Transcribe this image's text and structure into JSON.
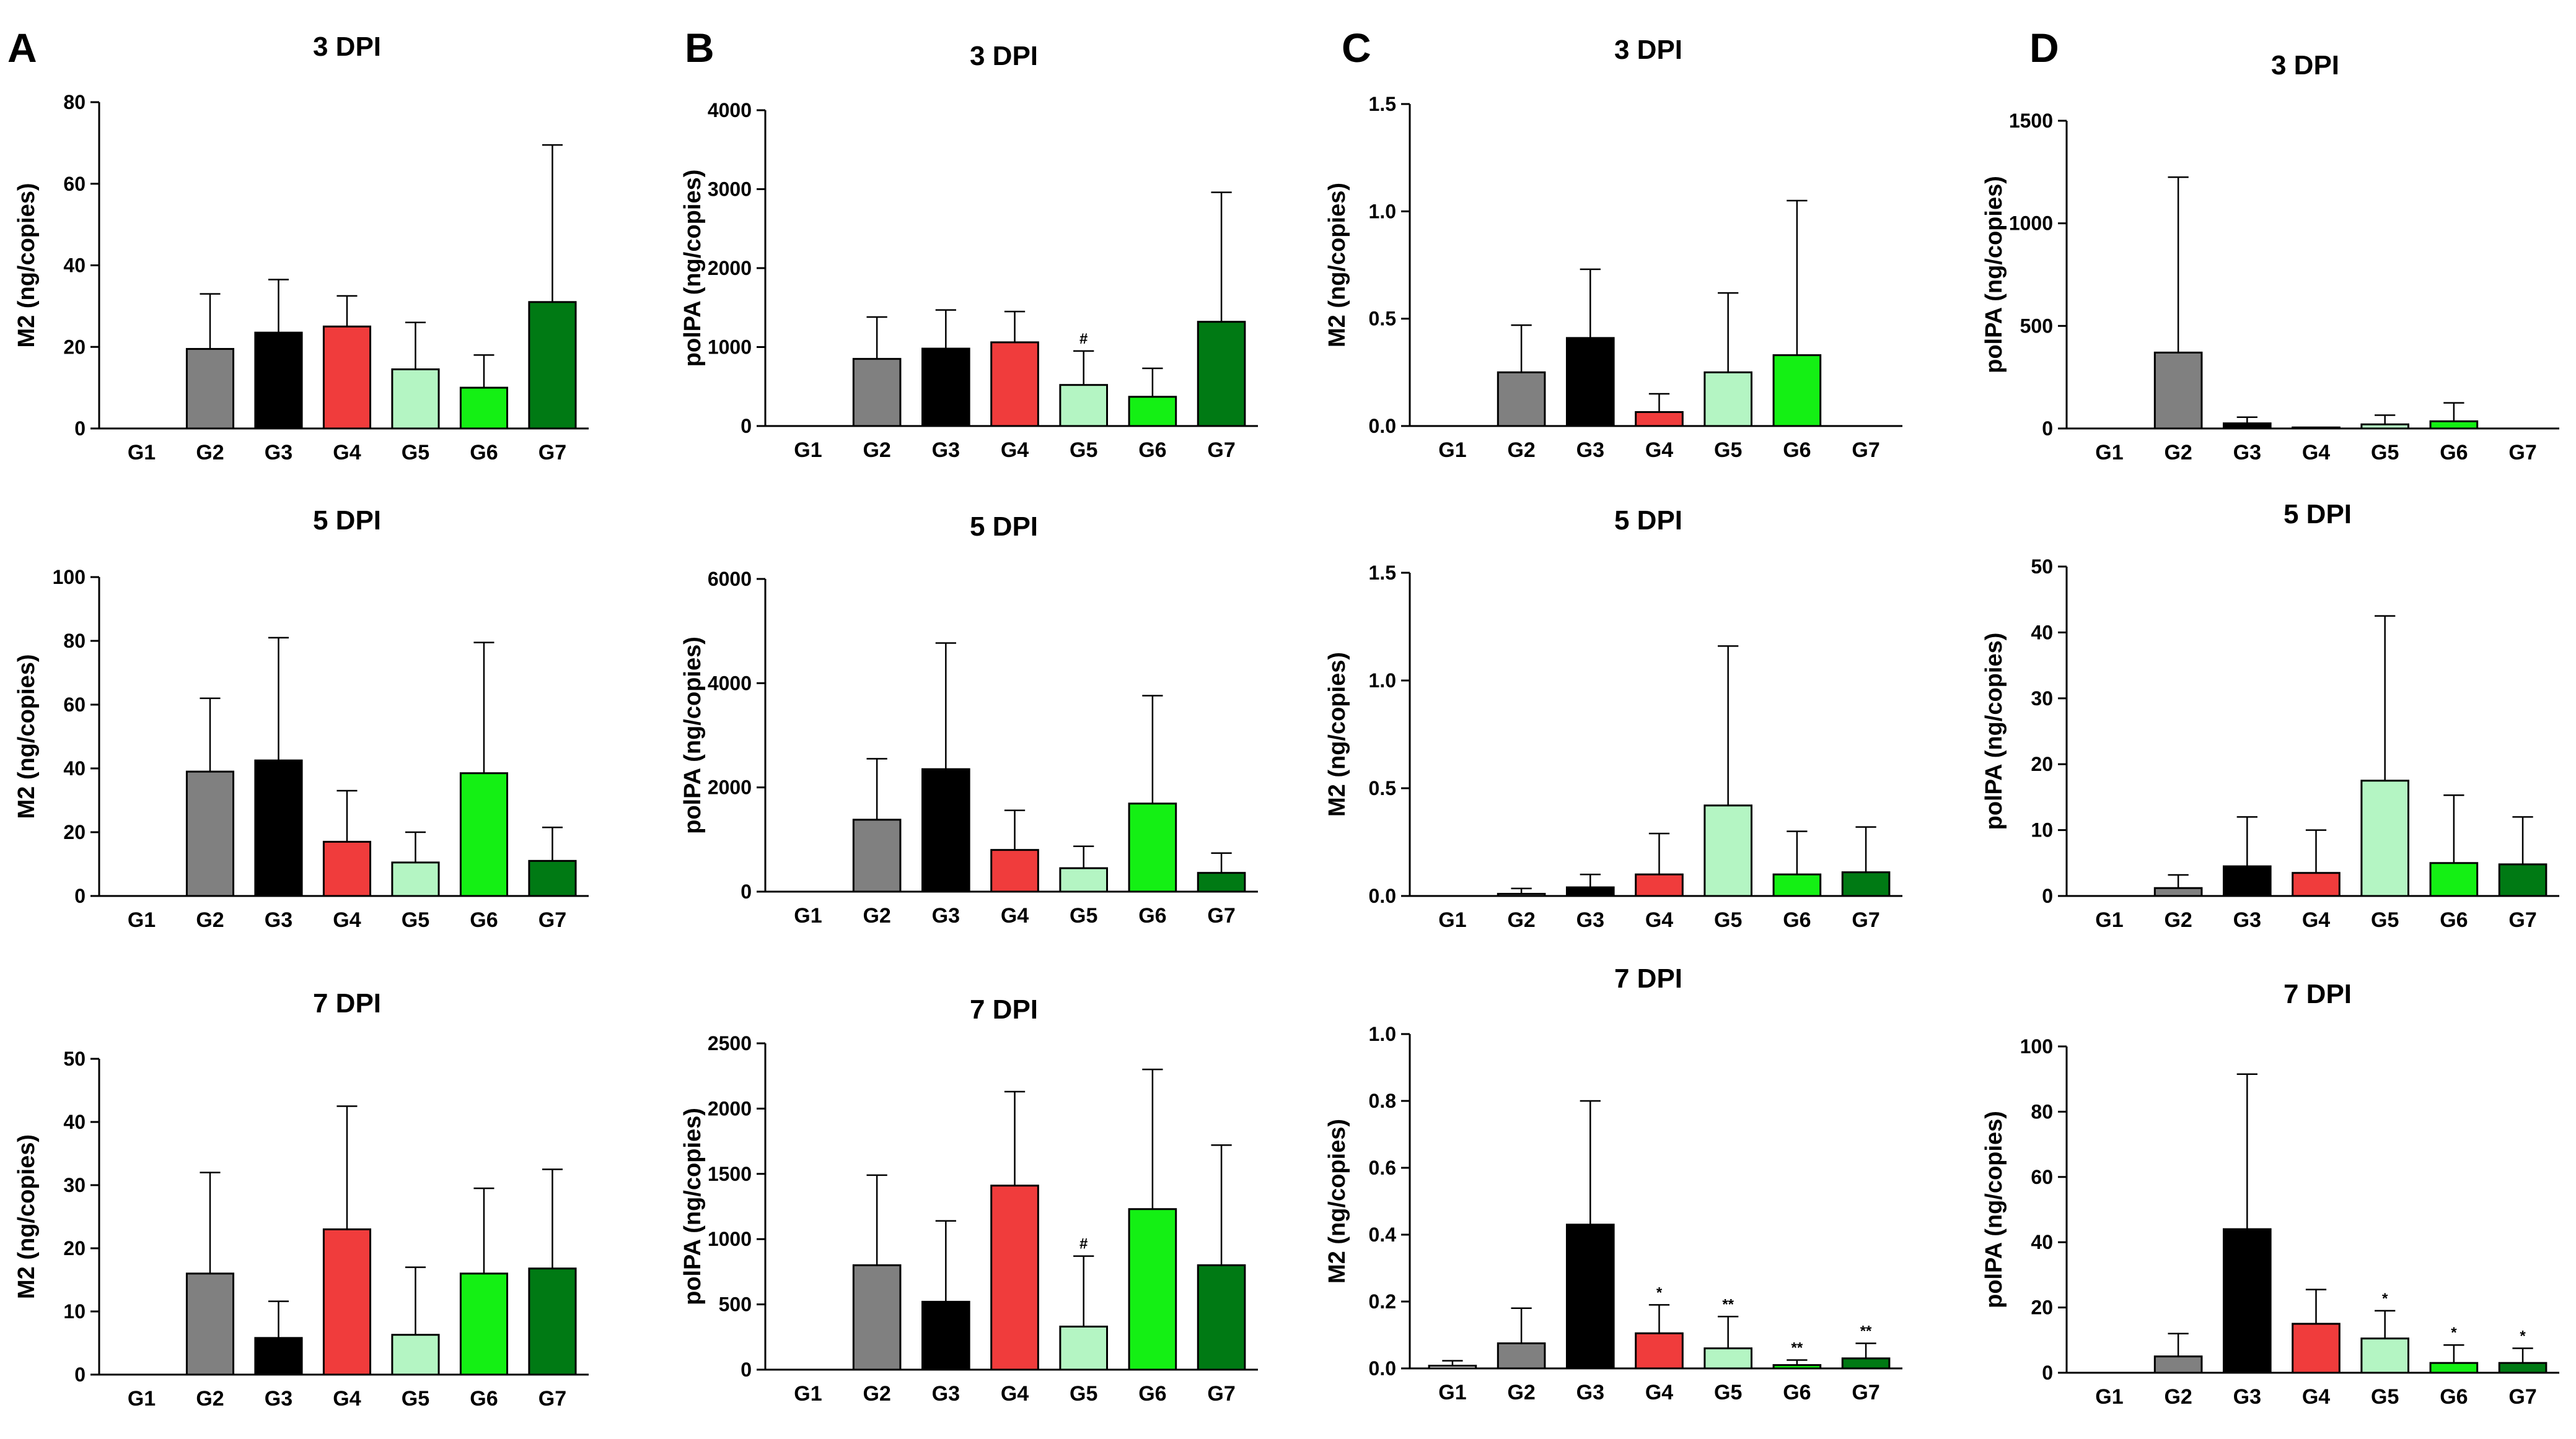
{
  "figure": {
    "panel_letters": [
      "A",
      "B",
      "C",
      "D"
    ],
    "colors": {
      "G2": "#808080",
      "G3": "#000000",
      "G4": "#f03c3c",
      "G5": "#b4f5c3",
      "G6": "#14f014",
      "G7": "#007a14"
    }
  },
  "chart_data": [
    {
      "id": "A-3",
      "panel": "A",
      "type": "bar",
      "title": "3 DPI",
      "ylabel": "M2 (ng/copies)",
      "ylim": [
        0,
        80
      ],
      "yticks": [
        "0",
        "20",
        "40",
        "60",
        "80"
      ],
      "yticks_values": [
        0,
        20,
        40,
        60,
        80
      ],
      "categories": [
        "G1",
        "G2",
        "G3",
        "G4",
        "G5",
        "G6",
        "G7"
      ],
      "values": [
        0,
        19.5,
        23.5,
        25,
        14.5,
        10,
        31
      ],
      "errors": [
        0,
        13.5,
        13,
        7.5,
        11.5,
        8,
        38.5
      ],
      "annotations": [
        "",
        "",
        "",
        "",
        "",
        "",
        ""
      ]
    },
    {
      "id": "A-5",
      "panel": "A",
      "type": "bar",
      "title": "5 DPI",
      "ylabel": "M2 (ng/copies)",
      "ylim": [
        0,
        100
      ],
      "yticks": [
        "0",
        "20",
        "40",
        "60",
        "80",
        "100"
      ],
      "yticks_values": [
        0,
        20,
        40,
        60,
        80,
        100
      ],
      "categories": [
        "G1",
        "G2",
        "G3",
        "G4",
        "G5",
        "G6",
        "G7"
      ],
      "values": [
        0,
        39,
        42.5,
        17,
        10.5,
        38.5,
        11
      ],
      "errors": [
        0,
        23,
        38.5,
        16,
        9.5,
        41,
        10.5
      ],
      "annotations": [
        "",
        "",
        "",
        "",
        "",
        "",
        ""
      ]
    },
    {
      "id": "A-7",
      "panel": "A",
      "type": "bar",
      "title": "7 DPI",
      "ylabel": "M2 (ng/copies)",
      "ylim": [
        0,
        50
      ],
      "yticks": [
        "0",
        "10",
        "20",
        "30",
        "40",
        "50"
      ],
      "yticks_values": [
        0,
        10,
        20,
        30,
        40,
        50
      ],
      "categories": [
        "G1",
        "G2",
        "G3",
        "G4",
        "G5",
        "G6",
        "G7"
      ],
      "values": [
        0,
        16,
        5.8,
        23,
        6.3,
        16,
        16.8
      ],
      "errors": [
        0,
        16,
        5.8,
        19.5,
        10.7,
        13.5,
        15.7
      ],
      "annotations": [
        "",
        "",
        "",
        "",
        "",
        "",
        ""
      ]
    },
    {
      "id": "B-3",
      "panel": "B",
      "type": "bar",
      "title": "3 DPI",
      "ylabel": "polPA (ng/copies)",
      "ylim": [
        0,
        4000
      ],
      "yticks": [
        "0",
        "1000",
        "2000",
        "3000",
        "4000"
      ],
      "yticks_values": [
        0,
        1000,
        2000,
        3000,
        4000
      ],
      "categories": [
        "G1",
        "G2",
        "G3",
        "G4",
        "G5",
        "G6",
        "G7"
      ],
      "values": [
        0,
        850,
        980,
        1060,
        520,
        370,
        1320
      ],
      "errors": [
        0,
        530,
        490,
        390,
        430,
        360,
        1640
      ],
      "annotations": [
        "",
        "",
        "",
        "",
        "#",
        "",
        ""
      ]
    },
    {
      "id": "B-5",
      "panel": "B",
      "type": "bar",
      "title": "5 DPI",
      "ylabel": "polPA (ng/copies)",
      "ylim": [
        0,
        6000
      ],
      "yticks": [
        "0",
        "2000",
        "4000",
        "6000"
      ],
      "yticks_values": [
        0,
        2000,
        4000,
        6000
      ],
      "categories": [
        "G1",
        "G2",
        "G3",
        "G4",
        "G5",
        "G6",
        "G7"
      ],
      "values": [
        0,
        1380,
        2350,
        800,
        450,
        1690,
        360
      ],
      "errors": [
        0,
        1170,
        2420,
        760,
        420,
        2070,
        380
      ],
      "annotations": [
        "",
        "",
        "",
        "",
        "",
        "",
        ""
      ]
    },
    {
      "id": "B-7",
      "panel": "B",
      "type": "bar",
      "title": "7 DPI",
      "ylabel": "polPA (ng/copies)",
      "ylim": [
        0,
        2500
      ],
      "yticks": [
        "0",
        "500",
        "1000",
        "1500",
        "2000",
        "2500"
      ],
      "yticks_values": [
        0,
        500,
        1000,
        1500,
        2000,
        2500
      ],
      "categories": [
        "G1",
        "G2",
        "G3",
        "G4",
        "G5",
        "G6",
        "G7"
      ],
      "values": [
        0,
        800,
        520,
        1410,
        330,
        1230,
        800
      ],
      "errors": [
        0,
        690,
        620,
        720,
        540,
        1070,
        920
      ],
      "annotations": [
        "",
        "",
        "",
        "",
        "#",
        "",
        ""
      ]
    },
    {
      "id": "C-3",
      "panel": "C",
      "type": "bar",
      "title": "3 DPI",
      "ylabel": "M2 (ng/copies)",
      "ylim": [
        0,
        1.5
      ],
      "yticks": [
        "0.0",
        "0.5",
        "1.0",
        "1.5"
      ],
      "yticks_values": [
        0,
        0.5,
        1.0,
        1.5
      ],
      "categories": [
        "G1",
        "G2",
        "G3",
        "G4",
        "G5",
        "G6",
        "G7"
      ],
      "values": [
        0,
        0.25,
        0.41,
        0.065,
        0.25,
        0.33,
        0
      ],
      "errors": [
        0,
        0.22,
        0.32,
        0.085,
        0.37,
        0.72,
        0
      ],
      "annotations": [
        "",
        "",
        "",
        "",
        "",
        "",
        ""
      ]
    },
    {
      "id": "C-5",
      "panel": "C",
      "type": "bar",
      "title": "5 DPI",
      "ylabel": "M2 (ng/copies)",
      "ylim": [
        0,
        1.5
      ],
      "yticks": [
        "0.0",
        "0.5",
        "1.0",
        "1.5"
      ],
      "yticks_values": [
        0,
        0.5,
        1.0,
        1.5
      ],
      "categories": [
        "G1",
        "G2",
        "G3",
        "G4",
        "G5",
        "G6",
        "G7"
      ],
      "values": [
        0,
        0.01,
        0.04,
        0.1,
        0.42,
        0.1,
        0.11
      ],
      "errors": [
        0,
        0.025,
        0.06,
        0.19,
        0.74,
        0.2,
        0.21
      ],
      "annotations": [
        "",
        "",
        "",
        "",
        "",
        "",
        ""
      ]
    },
    {
      "id": "C-7",
      "panel": "C",
      "type": "bar",
      "title": "7 DPI",
      "ylabel": "M2 (ng/copies)",
      "ylim": [
        0,
        1.0
      ],
      "yticks": [
        "0.0",
        "0.2",
        "0.4",
        "0.6",
        "0.8",
        "1.0"
      ],
      "yticks_values": [
        0,
        0.2,
        0.4,
        0.6,
        0.8,
        1.0
      ],
      "categories": [
        "G1",
        "G2",
        "G3",
        "G4",
        "G5",
        "G6",
        "G7"
      ],
      "values": [
        0.008,
        0.075,
        0.43,
        0.105,
        0.06,
        0.01,
        0.03
      ],
      "errors": [
        0.015,
        0.105,
        0.37,
        0.085,
        0.095,
        0.015,
        0.045
      ],
      "annotations": [
        "",
        "",
        "",
        "*",
        "**",
        "**",
        "**"
      ]
    },
    {
      "id": "D-3",
      "panel": "D",
      "type": "bar",
      "title": "3 DPI",
      "ylabel": "polPA (ng/copies)",
      "ylim": [
        0,
        1500
      ],
      "yticks": [
        "0",
        "500",
        "1000",
        "1500"
      ],
      "yticks_values": [
        0,
        500,
        1000,
        1500
      ],
      "categories": [
        "G1",
        "G2",
        "G3",
        "G4",
        "G5",
        "G6",
        "G7"
      ],
      "values": [
        0,
        370,
        25,
        5,
        20,
        35,
        0
      ],
      "errors": [
        0,
        855,
        30,
        0,
        45,
        90,
        0
      ],
      "annotations": [
        "",
        "",
        "",
        "",
        "",
        "",
        ""
      ]
    },
    {
      "id": "D-5",
      "panel": "D",
      "type": "bar",
      "title": "5 DPI",
      "ylabel": "polPA (ng/copies)",
      "ylim": [
        0,
        50
      ],
      "yticks": [
        "0",
        "10",
        "20",
        "30",
        "40",
        "50"
      ],
      "yticks_values": [
        0,
        10,
        20,
        30,
        40,
        50
      ],
      "categories": [
        "G1",
        "G2",
        "G3",
        "G4",
        "G5",
        "G6",
        "G7"
      ],
      "values": [
        0,
        1.2,
        4.5,
        3.5,
        17.5,
        5,
        4.8
      ],
      "errors": [
        0,
        2,
        7.5,
        6.5,
        25,
        10.3,
        7.2
      ],
      "annotations": [
        "",
        "",
        "",
        "",
        "",
        "",
        ""
      ]
    },
    {
      "id": "D-7",
      "panel": "D",
      "type": "bar",
      "title": "7 DPI",
      "ylabel": "polPA (ng/copies)",
      "ylim": [
        0,
        100
      ],
      "yticks": [
        "0",
        "20",
        "40",
        "60",
        "80",
        "100"
      ],
      "yticks_values": [
        0,
        20,
        40,
        60,
        80,
        100
      ],
      "categories": [
        "G1",
        "G2",
        "G3",
        "G4",
        "G5",
        "G6",
        "G7"
      ],
      "values": [
        0,
        5,
        44,
        15,
        10.5,
        3,
        3
      ],
      "errors": [
        0,
        7,
        47.5,
        10.5,
        8.5,
        5.5,
        4.5
      ],
      "annotations": [
        "",
        "",
        "",
        "",
        "*",
        "*",
        "*"
      ]
    }
  ]
}
